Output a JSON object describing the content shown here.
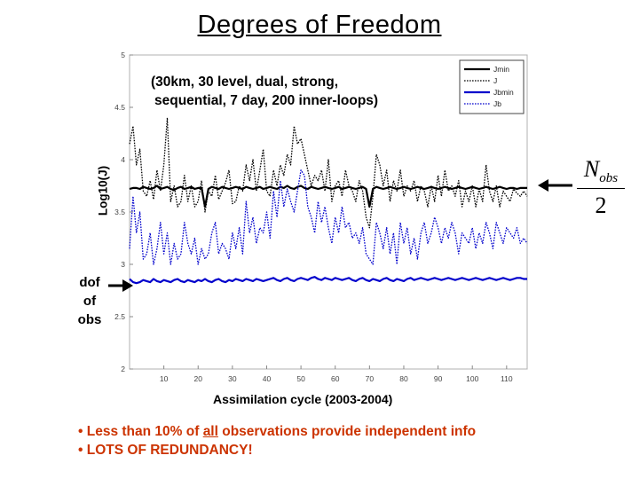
{
  "slide": {
    "title": "Degrees of Freedom",
    "subtitle_line1": "(30km, 30 level, dual, strong,",
    "subtitle_line2": "sequential, 7 day, 200 inner-loops)",
    "dof_lines": [
      "dof",
      "of",
      "obs"
    ],
    "fraction": {
      "numerator": "N",
      "subscript": "obs",
      "denominator": "2"
    },
    "bullets": [
      {
        "marker": "•",
        "pre": "Less than 10% of ",
        "emph": "all",
        "post": " observations provide independent info"
      },
      {
        "marker": "•",
        "pre": "LOTS OF REDUNDANCY!",
        "emph": "",
        "post": ""
      }
    ],
    "colors": {
      "bullets": "#cc3300",
      "blue": "#0000cc"
    }
  },
  "chart_data": {
    "type": "line",
    "xlabel": "Assimilation cycle (2003-2004)",
    "ylabel": "Log10(J)",
    "xlim": [
      0,
      116
    ],
    "ylim": [
      2,
      5
    ],
    "xticks": [
      10,
      20,
      30,
      40,
      50,
      60,
      70,
      80,
      90,
      100,
      110
    ],
    "yticks": [
      2,
      2.5,
      3,
      3.5,
      4,
      4.5,
      5
    ],
    "legend_position": "top-right",
    "series": [
      {
        "name": "Jmin",
        "color": "#000000",
        "style": "solid",
        "width": 2.2,
        "values": [
          3.72,
          3.73,
          3.73,
          3.72,
          3.74,
          3.73,
          3.72,
          3.73,
          3.75,
          3.72,
          3.73,
          3.74,
          3.72,
          3.71,
          3.73,
          3.74,
          3.72,
          3.73,
          3.74,
          3.72,
          3.73,
          3.73,
          3.55,
          3.72,
          3.74,
          3.73,
          3.72,
          3.74,
          3.73,
          3.72,
          3.73,
          3.74,
          3.73,
          3.72,
          3.74,
          3.73,
          3.72,
          3.73,
          3.74,
          3.72,
          3.73,
          3.74,
          3.73,
          3.72,
          3.74,
          3.73,
          3.75,
          3.73,
          3.72,
          3.74,
          3.75,
          3.73,
          3.72,
          3.74,
          3.73,
          3.72,
          3.73,
          3.74,
          3.73,
          3.72,
          3.73,
          3.74,
          3.72,
          3.73,
          3.74,
          3.73,
          3.72,
          3.73,
          3.74,
          3.72,
          3.55,
          3.72,
          3.74,
          3.73,
          3.72,
          3.73,
          3.74,
          3.73,
          3.72,
          3.73,
          3.74,
          3.73,
          3.72,
          3.73,
          3.74,
          3.73,
          3.72,
          3.73,
          3.74,
          3.73,
          3.72,
          3.73,
          3.74,
          3.73,
          3.72,
          3.73,
          3.74,
          3.73,
          3.72,
          3.73,
          3.74,
          3.73,
          3.72,
          3.73,
          3.74,
          3.73,
          3.72,
          3.73,
          3.74,
          3.73,
          3.72,
          3.73,
          3.73,
          3.72,
          3.73,
          3.73,
          3.73
        ]
      },
      {
        "name": "J",
        "color": "#000000",
        "style": "dotted",
        "width": 1.3,
        "values": [
          4.15,
          4.32,
          3.95,
          4.1,
          3.7,
          3.65,
          3.8,
          3.62,
          3.9,
          3.7,
          3.95,
          4.4,
          3.6,
          3.75,
          3.55,
          3.6,
          3.85,
          3.6,
          3.75,
          3.55,
          3.6,
          3.8,
          3.5,
          3.7,
          3.65,
          3.85,
          3.62,
          3.7,
          3.78,
          3.9,
          3.58,
          3.6,
          3.75,
          3.7,
          3.95,
          3.8,
          4.0,
          3.7,
          3.9,
          4.1,
          3.7,
          3.65,
          3.9,
          3.75,
          3.95,
          3.85,
          4.05,
          3.95,
          4.32,
          4.15,
          4.2,
          4.05,
          3.9,
          3.75,
          3.85,
          3.8,
          3.9,
          3.7,
          4.0,
          3.6,
          3.75,
          3.8,
          3.65,
          3.9,
          3.75,
          3.7,
          3.6,
          3.8,
          3.7,
          3.45,
          3.35,
          3.65,
          4.05,
          3.95,
          3.75,
          3.9,
          3.6,
          3.8,
          3.7,
          3.9,
          3.65,
          3.75,
          3.7,
          3.8,
          3.6,
          3.75,
          3.7,
          3.55,
          3.75,
          3.6,
          3.85,
          3.65,
          3.9,
          3.7,
          3.75,
          3.65,
          3.8,
          3.55,
          3.7,
          3.6,
          3.75,
          3.55,
          3.72,
          3.6,
          3.95,
          3.7,
          3.6,
          3.75,
          3.55,
          3.7,
          3.65,
          3.6,
          3.72,
          3.68,
          3.65,
          3.7,
          3.65
        ]
      },
      {
        "name": "Jbmin",
        "color": "#0000cc",
        "style": "solid",
        "width": 2.2,
        "values": [
          2.86,
          2.83,
          2.82,
          2.83,
          2.85,
          2.84,
          2.83,
          2.86,
          2.84,
          2.83,
          2.85,
          2.84,
          2.83,
          2.85,
          2.86,
          2.84,
          2.83,
          2.85,
          2.84,
          2.83,
          2.85,
          2.84,
          2.86,
          2.84,
          2.83,
          2.85,
          2.86,
          2.84,
          2.83,
          2.85,
          2.84,
          2.86,
          2.85,
          2.84,
          2.86,
          2.85,
          2.84,
          2.86,
          2.85,
          2.84,
          2.85,
          2.86,
          2.87,
          2.85,
          2.84,
          2.86,
          2.87,
          2.85,
          2.84,
          2.86,
          2.87,
          2.86,
          2.85,
          2.87,
          2.88,
          2.86,
          2.85,
          2.87,
          2.86,
          2.85,
          2.87,
          2.86,
          2.85,
          2.86,
          2.87,
          2.85,
          2.84,
          2.86,
          2.87,
          2.85,
          2.84,
          2.86,
          2.85,
          2.84,
          2.86,
          2.87,
          2.85,
          2.84,
          2.86,
          2.85,
          2.84,
          2.86,
          2.87,
          2.85,
          2.86,
          2.87,
          2.86,
          2.85,
          2.86,
          2.87,
          2.86,
          2.85,
          2.86,
          2.87,
          2.86,
          2.85,
          2.86,
          2.87,
          2.86,
          2.85,
          2.86,
          2.87,
          2.86,
          2.85,
          2.86,
          2.87,
          2.86,
          2.85,
          2.86,
          2.87,
          2.86,
          2.85,
          2.86,
          2.87,
          2.87,
          2.86,
          2.86
        ]
      },
      {
        "name": "Jb",
        "color": "#0000cc",
        "style": "dotted",
        "width": 1.3,
        "values": [
          3.15,
          3.65,
          3.3,
          3.5,
          3.05,
          3.1,
          3.3,
          3.0,
          3.15,
          3.4,
          3.1,
          3.3,
          3.0,
          3.2,
          3.05,
          3.1,
          3.4,
          3.2,
          3.1,
          3.25,
          3.0,
          3.15,
          3.05,
          3.1,
          3.3,
          3.4,
          3.1,
          3.2,
          3.15,
          3.05,
          3.3,
          3.15,
          3.35,
          3.1,
          3.6,
          3.3,
          3.45,
          3.2,
          3.35,
          3.3,
          3.5,
          3.25,
          3.7,
          3.45,
          3.8,
          3.55,
          3.72,
          3.6,
          3.5,
          3.7,
          3.9,
          3.85,
          3.55,
          3.45,
          3.3,
          3.6,
          3.4,
          3.55,
          3.35,
          3.2,
          3.45,
          3.3,
          3.55,
          3.35,
          3.4,
          3.25,
          3.3,
          3.2,
          3.35,
          3.1,
          3.05,
          3.0,
          3.4,
          3.3,
          3.15,
          3.35,
          3.1,
          3.3,
          3.0,
          3.4,
          3.2,
          3.35,
          3.1,
          3.25,
          3.05,
          3.3,
          3.4,
          3.2,
          3.3,
          3.45,
          3.35,
          3.2,
          3.35,
          3.25,
          3.4,
          3.3,
          3.1,
          3.3,
          3.25,
          3.2,
          3.35,
          3.15,
          3.3,
          3.2,
          3.4,
          3.3,
          3.15,
          3.4,
          3.3,
          3.2,
          3.35,
          3.3,
          3.25,
          3.35,
          3.2,
          3.25,
          3.2
        ]
      }
    ]
  }
}
